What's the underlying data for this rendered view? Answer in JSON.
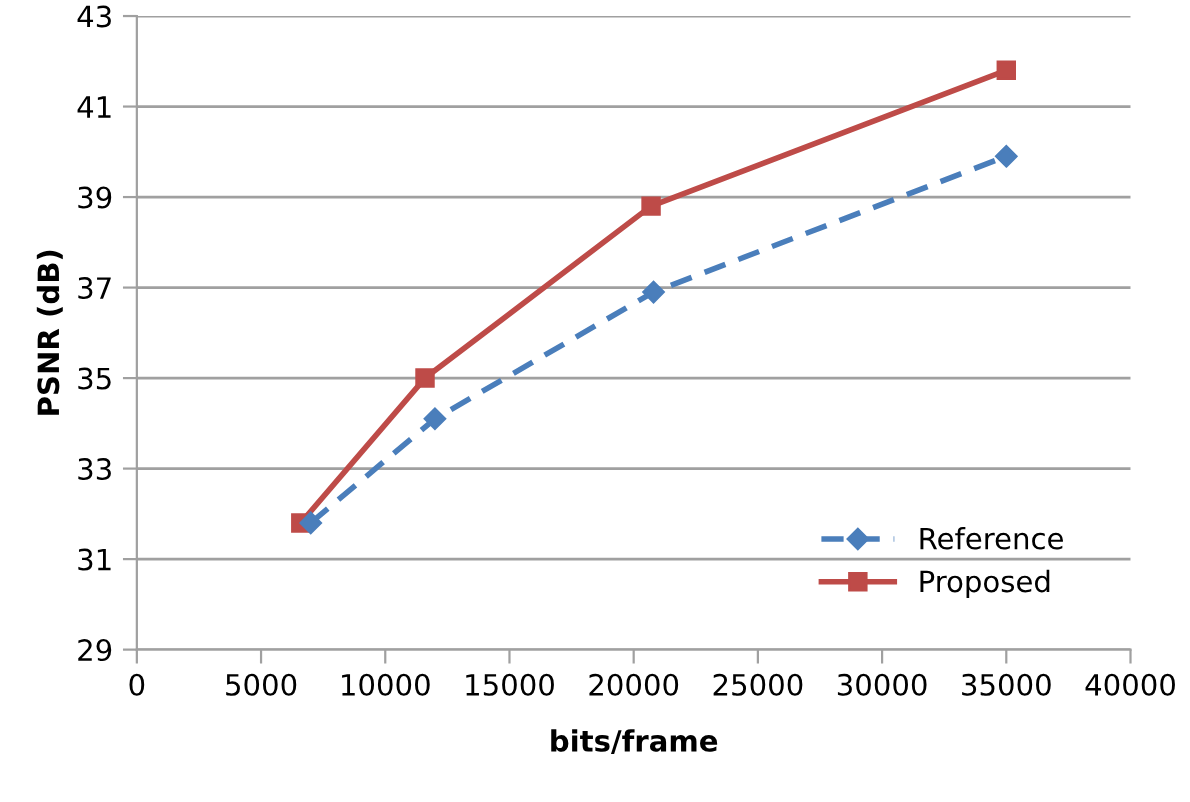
{
  "chart_data": {
    "type": "line",
    "xlabel": "bits/frame",
    "ylabel": "PSNR (dB)",
    "series": [
      {
        "name": "Reference",
        "color": "#4a7ebb",
        "marker": "diamond",
        "line_style": "dashed",
        "x": [
          7000,
          12000,
          20800,
          35000
        ],
        "values": [
          31.8,
          34.1,
          36.9,
          39.9
        ]
      },
      {
        "name": "Proposed",
        "color": "#be4b48",
        "marker": "square",
        "line_style": "solid",
        "x": [
          6600,
          11600,
          20700,
          35000
        ],
        "values": [
          31.8,
          35.0,
          38.8,
          41.8
        ]
      }
    ],
    "xlim": [
      0,
      40000
    ],
    "xticks": [
      0,
      5000,
      10000,
      15000,
      20000,
      25000,
      30000,
      35000,
      40000
    ],
    "ylim": [
      29,
      43
    ],
    "yticks": [
      29,
      31,
      33,
      35,
      37,
      39,
      41,
      43
    ],
    "grid": "y",
    "legend": "bottom right"
  }
}
